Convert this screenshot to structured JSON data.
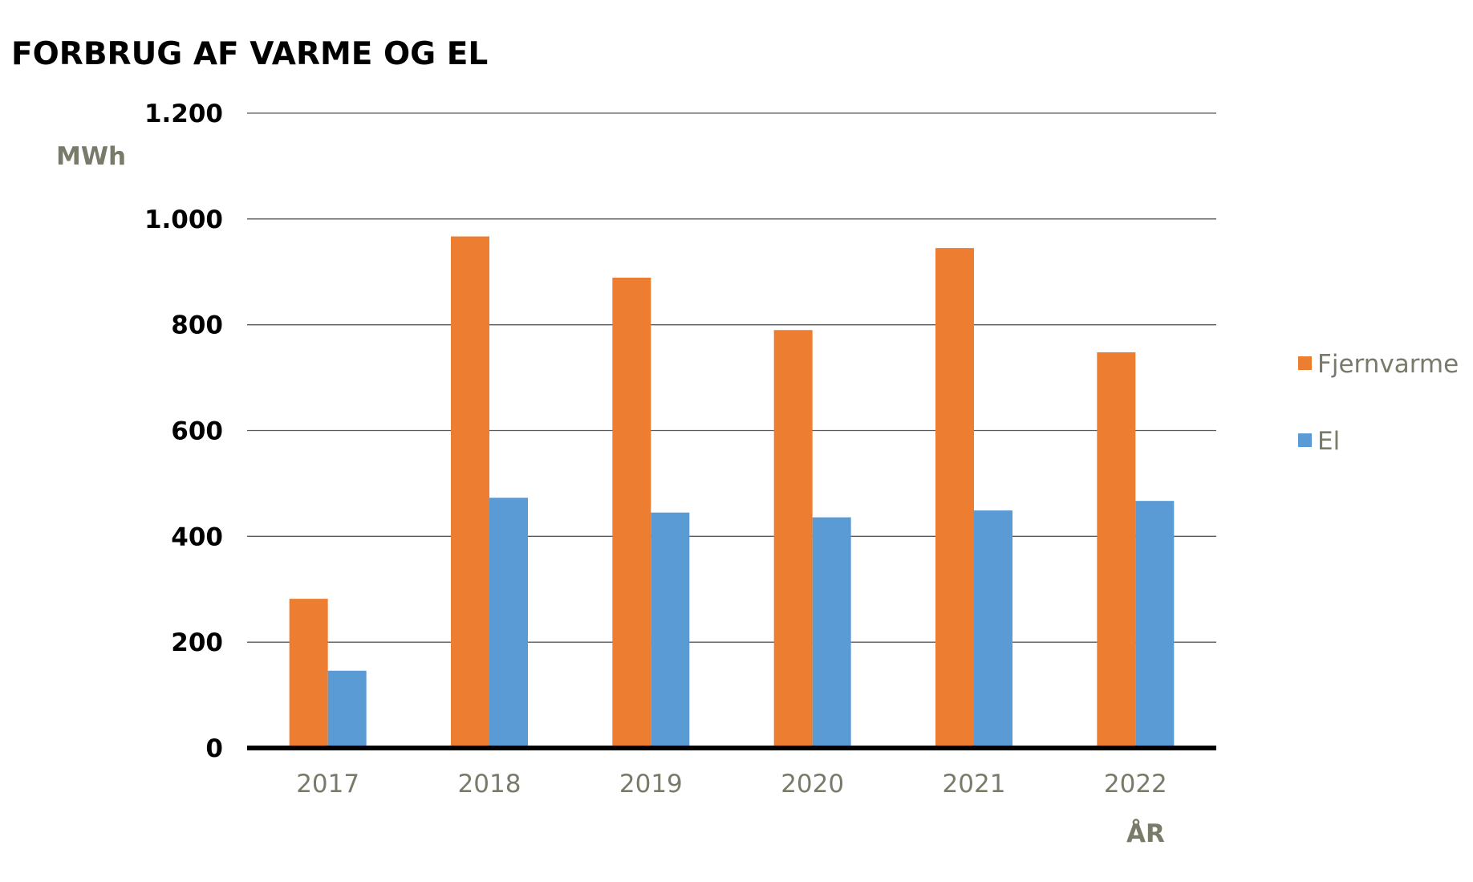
{
  "chart_data": {
    "type": "bar",
    "title": "FORBRUG AF VARME OG EL",
    "ylabel": "MWh",
    "xlabel": "ÅR",
    "categories": [
      "2017",
      "2018",
      "2019",
      "2020",
      "2021",
      "2022"
    ],
    "series": [
      {
        "name": "Fjernvarme",
        "color": "#ed7d31",
        "values": [
          282,
          967,
          889,
          790,
          945,
          748
        ]
      },
      {
        "name": "El",
        "color": "#5b9bd5",
        "values": [
          146,
          473,
          445,
          436,
          449,
          467
        ]
      }
    ],
    "ylim": [
      0,
      1200
    ],
    "yticks": [
      0,
      200,
      400,
      600,
      800,
      1000,
      1200
    ],
    "ytick_labels": [
      "0",
      "200",
      "400",
      "600",
      "800",
      "1.000",
      "1.200"
    ],
    "grid": true,
    "legend_position": "right"
  }
}
